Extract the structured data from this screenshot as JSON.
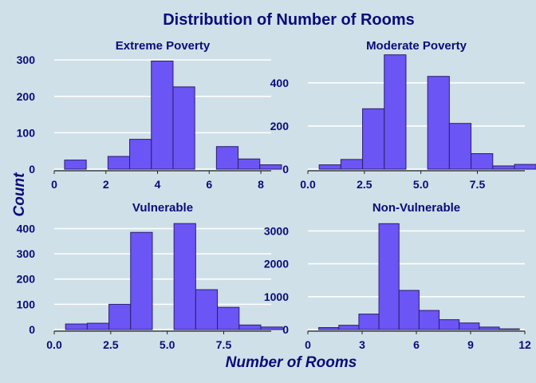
{
  "title": "Distribution of Number of Rooms",
  "xlabel": "Number of Rooms",
  "ylabel": "Count",
  "colors": {
    "background": "#cfe0e8",
    "bar_fill": "#6b55f5",
    "bar_stroke": "#2a1e70",
    "text": "#0b0b7a",
    "grid": "#ffffff",
    "axis": "#222222"
  },
  "chart_data": [
    {
      "type": "bar",
      "title": "Extreme Poverty",
      "bin_width": 0.84,
      "x_start": 0.4,
      "values": [
        25,
        0,
        35,
        82,
        297,
        226,
        0,
        62,
        28,
        12
      ],
      "xlim": [
        0,
        8.4
      ],
      "xticks": [
        0,
        2,
        4,
        6,
        8
      ],
      "xtick_labels": [
        "0",
        "2",
        "4",
        "6",
        "8"
      ],
      "ylim": [
        0,
        320
      ],
      "yticks": [
        0,
        100,
        200,
        300
      ],
      "ytick_labels": [
        "0",
        "100",
        "200",
        "300"
      ],
      "grid": true
    },
    {
      "type": "bar",
      "title": "Moderate Poverty",
      "bin_width": 0.96,
      "x_start": 0.5,
      "values": [
        20,
        45,
        280,
        530,
        0,
        430,
        212,
        72,
        15,
        22
      ],
      "xlim": [
        0,
        9.6
      ],
      "xticks": [
        0,
        2.5,
        5,
        7.5
      ],
      "xtick_labels": [
        "0.0",
        "2.5",
        "5.0",
        "7.5"
      ],
      "ylim": [
        0,
        540
      ],
      "yticks": [
        0,
        200,
        400
      ],
      "ytick_labels": [
        "0",
        "200",
        "400"
      ],
      "grid": true
    },
    {
      "type": "bar",
      "title": "Vulnerable",
      "bin_width": 0.96,
      "x_start": 0.5,
      "values": [
        22,
        25,
        100,
        385,
        0,
        420,
        158,
        88,
        18,
        10
      ],
      "xlim": [
        0,
        9.6
      ],
      "xticks": [
        0,
        2.5,
        5,
        7.5
      ],
      "xtick_labels": [
        "0.0",
        "2.5",
        "5.0",
        "7.5"
      ],
      "ylim": [
        0,
        430
      ],
      "yticks": [
        0,
        100,
        200,
        300,
        400
      ],
      "ytick_labels": [
        "0",
        "100",
        "200",
        "300",
        "400"
      ],
      "grid": true
    },
    {
      "type": "bar",
      "title": "Non-Vulnerable",
      "bin_width": 1.11,
      "x_start": 0.6,
      "values": [
        60,
        130,
        470,
        3220,
        1190,
        580,
        300,
        200,
        75,
        20
      ],
      "xlim": [
        0,
        12
      ],
      "xticks": [
        0,
        3,
        6,
        9,
        12
      ],
      "xtick_labels": [
        "0",
        "3",
        "6",
        "9",
        "12"
      ],
      "ylim": [
        0,
        3300
      ],
      "yticks": [
        0,
        1000,
        2000,
        3000
      ],
      "ytick_labels": [
        "0",
        "1000",
        "2000",
        "3000"
      ],
      "grid": true
    }
  ]
}
